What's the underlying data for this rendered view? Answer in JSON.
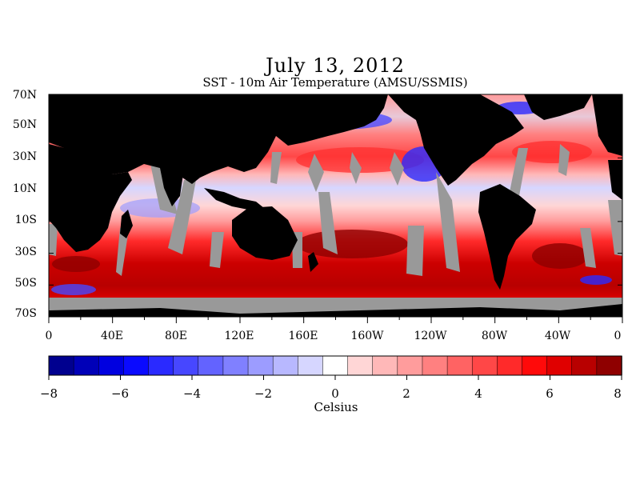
{
  "title": "July 13, 2012",
  "subtitle": "SST - 10m Air Temperature (AMSU/SSMIS)",
  "lat_labels": [
    "70N",
    "50N",
    "30N",
    "10N",
    "10S",
    "30S",
    "50S",
    "70S"
  ],
  "lon_labels": [
    "0",
    "40E",
    "80E",
    "120E",
    "160E",
    "160W",
    "120W",
    "80W",
    "40W",
    "0"
  ],
  "colorbar": {
    "units": "Celsius",
    "tick_labels": [
      "−8",
      "−6",
      "−4",
      "−2",
      "0",
      "2",
      "4",
      "6",
      "8"
    ],
    "min": -8,
    "max": 8,
    "colors": [
      "#00008f",
      "#0000b8",
      "#0000e0",
      "#0a0aff",
      "#2a2aff",
      "#4747ff",
      "#6363ff",
      "#8080ff",
      "#9c9cff",
      "#b8b8ff",
      "#d6d6ff",
      "#ffffff",
      "#ffd6d6",
      "#ffb8b8",
      "#ff9c9c",
      "#ff8080",
      "#ff6363",
      "#ff4747",
      "#ff2a2a",
      "#ff0a0a",
      "#e00000",
      "#b80000",
      "#8f0000"
    ]
  },
  "colors": {
    "land": "#000000",
    "missing": "#999999"
  }
}
